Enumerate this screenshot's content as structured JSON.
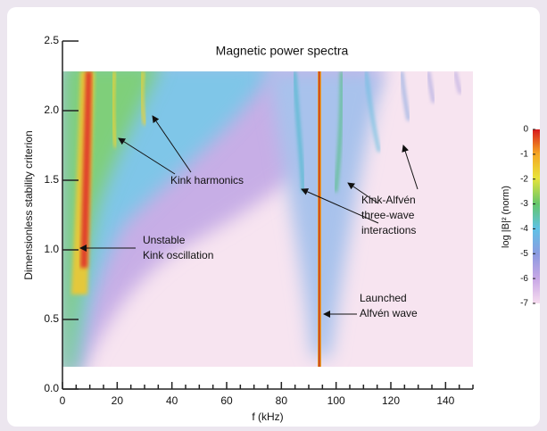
{
  "chart_data": {
    "type": "heatmap",
    "title": "Magnetic power spectra",
    "x_label": "f (kHz)",
    "y_label": "Dimensionless stability criterion",
    "xlim": [
      0,
      150
    ],
    "ylim": [
      0,
      2.5
    ],
    "xticks": [
      0,
      20,
      40,
      60,
      80,
      100,
      120,
      140
    ],
    "xminorticks": [
      5,
      10,
      15,
      25,
      30,
      35,
      45,
      50,
      55,
      65,
      70,
      75,
      85,
      90,
      95,
      105,
      110,
      115,
      125,
      130,
      135,
      145,
      150
    ],
    "yticks": [
      {
        "value": 0,
        "label": "0.0"
      },
      0.5,
      {
        "value": 1,
        "label": "1.0"
      },
      1.5,
      {
        "value": 2,
        "label": "2.0"
      },
      2.5
    ],
    "colorbar": {
      "label": "log |B|² (norm)",
      "clim": [
        -7,
        0
      ],
      "ticks": [
        0,
        -1,
        -2,
        -3,
        -4,
        -5,
        -6,
        -7
      ]
    },
    "annotations": [
      [
        "Kink harmonics"
      ],
      [
        "Unstable",
        "Kink oscillation"
      ],
      [
        "Kink-Alfvén",
        "three-wave",
        "interactions"
      ],
      [
        "Launched",
        "Alfvén wave"
      ]
    ]
  }
}
